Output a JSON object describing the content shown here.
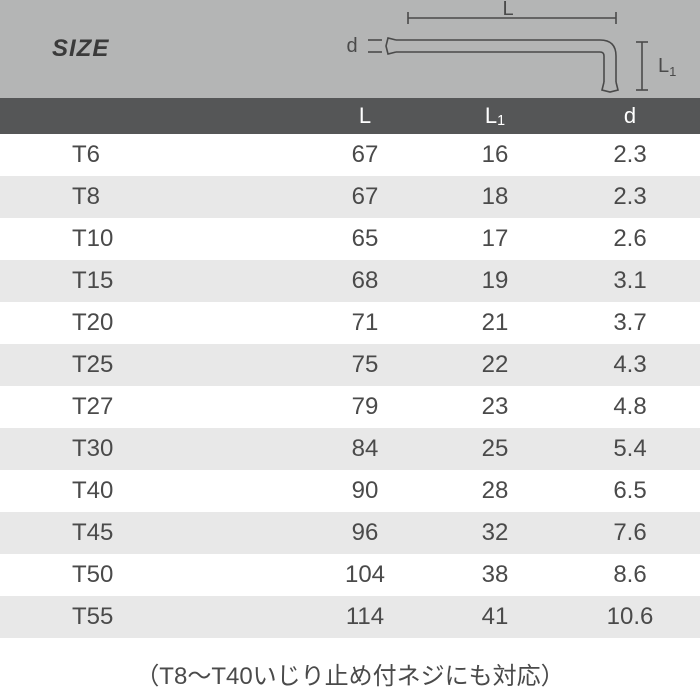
{
  "header": {
    "size_label": "SIZE",
    "col_L": "L",
    "col_L1": "L",
    "col_L1_sub": "1",
    "col_d": "d",
    "diagram": {
      "L_label": "L",
      "L1_label": "L",
      "L1_sub": "1",
      "d_label": "d"
    }
  },
  "colors": {
    "header_bg": "#b4b5b5",
    "colheader_bg": "#555657",
    "colheader_fg": "#ffffff",
    "row_even_bg": "#e8e8e8",
    "row_odd_bg": "#ffffff",
    "text": "#4a4a4a",
    "diagram_stroke": "#4a4a4a"
  },
  "table": {
    "columns": [
      "size",
      "L",
      "L1",
      "d"
    ],
    "rows": [
      {
        "size": "T6",
        "L": "67",
        "L1": "16",
        "d": "2.3"
      },
      {
        "size": "T8",
        "L": "67",
        "L1": "18",
        "d": "2.3"
      },
      {
        "size": "T10",
        "L": "65",
        "L1": "17",
        "d": "2.6"
      },
      {
        "size": "T15",
        "L": "68",
        "L1": "19",
        "d": "3.1"
      },
      {
        "size": "T20",
        "L": "71",
        "L1": "21",
        "d": "3.7"
      },
      {
        "size": "T25",
        "L": "75",
        "L1": "22",
        "d": "4.3"
      },
      {
        "size": "T27",
        "L": "79",
        "L1": "23",
        "d": "4.8"
      },
      {
        "size": "T30",
        "L": "84",
        "L1": "25",
        "d": "5.4"
      },
      {
        "size": "T40",
        "L": "90",
        "L1": "28",
        "d": "6.5"
      },
      {
        "size": "T45",
        "L": "96",
        "L1": "32",
        "d": "7.6"
      },
      {
        "size": "T50",
        "L": "104",
        "L1": "38",
        "d": "8.6"
      },
      {
        "size": "T55",
        "L": "114",
        "L1": "41",
        "d": "10.6"
      }
    ]
  },
  "footnote": "（T8～T40いじり止め付ネジにも対応）"
}
